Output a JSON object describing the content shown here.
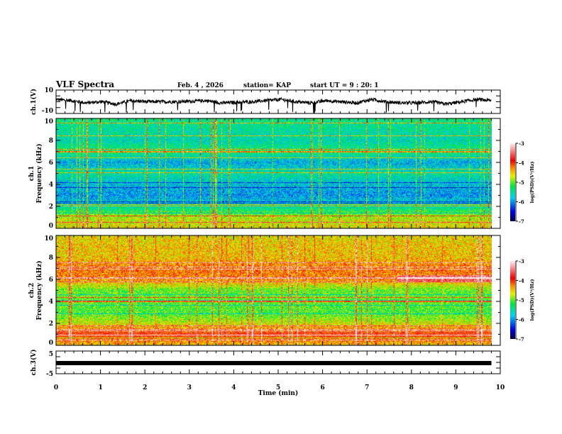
{
  "header": {
    "title": "VLF Spectra",
    "date": "Feb. 4  , 2026",
    "station": "station= KAP",
    "start": "start  UT  =   9  : 20: 1"
  },
  "chart_data": [
    {
      "type": "line",
      "name": "ch1-waveform",
      "ylabel": "ch.1(V)",
      "ylim": [
        -10,
        10
      ],
      "ytick_labels": [
        "10",
        "-10"
      ],
      "xlim": [
        0,
        10
      ],
      "data_end_min": 9.8,
      "approx_level_V": [
        2,
        1,
        -1,
        0,
        -2,
        1,
        0,
        0,
        0,
        0.5,
        1,
        -1,
        -0.5,
        0,
        1,
        2,
        0,
        -1,
        1,
        0,
        -1,
        2,
        0,
        -1,
        -1,
        0,
        -2,
        0,
        2,
        1
      ]
    },
    {
      "type": "heatmap",
      "name": "ch1-spectrogram",
      "ylabel": "ch.1\nFrequency (kHz)",
      "ylim": [
        0,
        10
      ],
      "ytick_labels": [
        "0",
        "2",
        "4",
        "6",
        "8",
        "10"
      ],
      "xlim": [
        0,
        10
      ],
      "data_end_min": 9.8,
      "mean_logPSD_by_kHz": [
        -4.6,
        -4.8,
        -5.6,
        -6.0,
        -5.8,
        -5.5,
        -5.9,
        -5.3,
        -5.6,
        -5.5,
        -5.4
      ],
      "colorbar": {
        "label": "log(PSD)(V²/Hz)",
        "range": [
          -7,
          -3
        ],
        "tick_labels": [
          "-3",
          "-4",
          "-5",
          "-6",
          "-7"
        ]
      }
    },
    {
      "type": "heatmap",
      "name": "ch2-spectrogram",
      "ylabel": "ch.2\nFrequency (kHz)",
      "ylim": [
        0,
        10
      ],
      "ytick_labels": [
        "0",
        "2",
        "4",
        "6",
        "8",
        "10"
      ],
      "xlim": [
        0,
        10
      ],
      "data_end_min": 9.8,
      "mean_logPSD_by_kHz": [
        -4.5,
        -3.9,
        -4.7,
        -5.1,
        -5.0,
        -5.0,
        -4.3,
        -4.2,
        -4.5,
        -4.5,
        -4.6
      ],
      "colorbar": {
        "label": "log(PSD)(V²/Hz)",
        "range": [
          -7,
          -3
        ],
        "tick_labels": [
          "-3",
          "-4",
          "-5",
          "-6",
          "-7"
        ]
      }
    },
    {
      "type": "line",
      "name": "ch3-waveform",
      "ylabel": "ch.3(V)",
      "ylim": [
        -5,
        5
      ],
      "ytick_labels": [
        "5",
        "-5"
      ],
      "xlim": [
        0,
        10
      ],
      "data_end_min": 9.8,
      "approx_level_V": -0.3
    }
  ],
  "xaxis": {
    "label": "Time  (min)",
    "tick_labels": [
      "0",
      "1",
      "2",
      "3",
      "4",
      "5",
      "6",
      "7",
      "8",
      "9",
      "10"
    ]
  }
}
